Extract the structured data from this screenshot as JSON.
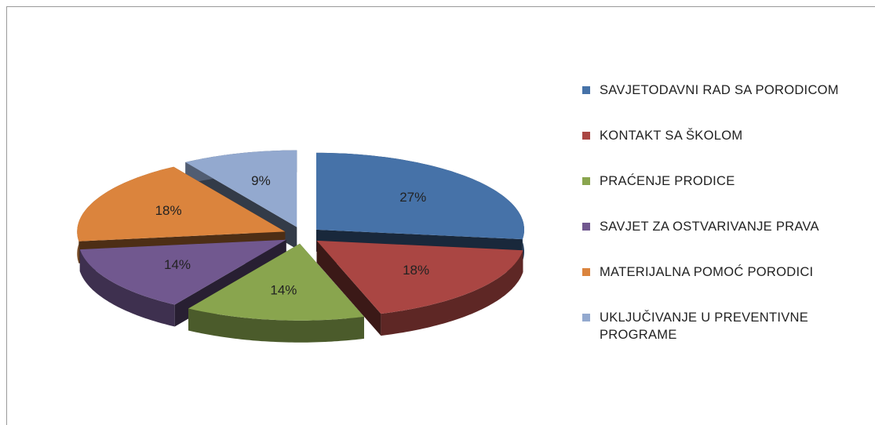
{
  "chart_data": {
    "type": "pie3d",
    "categories": [
      "SAVJETODAVNI RAD SA PORODICOM",
      "KONTAKT SA ŠKOLOM",
      "PRAĆENJE PRODICE",
      "SAVJET ZA OSTVARIVANJE PRAVA",
      "MATERIJALNA POMOĆ PORODICI",
      "UKLJUČIVANJE U PREVENTIVNE PROGRAME"
    ],
    "values": [
      27,
      18,
      14,
      14,
      18,
      9
    ],
    "value_labels": [
      "27%",
      "18%",
      "14%",
      "14%",
      "18%",
      "9%"
    ],
    "colors": [
      "#4672a8",
      "#aa4643",
      "#89a54e",
      "#71588f",
      "#db843d",
      "#93a9cf"
    ]
  }
}
